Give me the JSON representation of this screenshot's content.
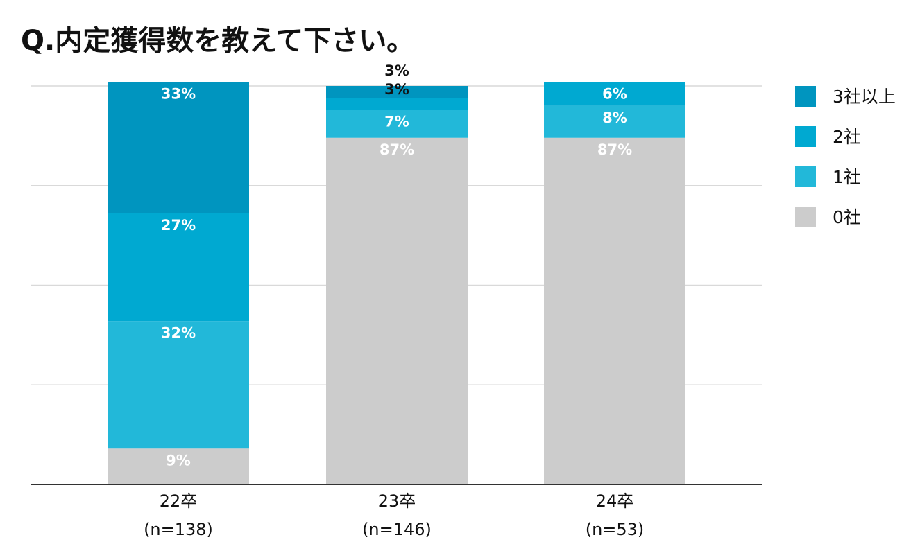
{
  "chart_data": {
    "type": "bar",
    "stacked": true,
    "title": "Q.内定獲得数を教えて下さい。",
    "categories": [
      {
        "label": "22卒",
        "sublabel": "(n=138)"
      },
      {
        "label": "23卒",
        "sublabel": "(n=146)"
      },
      {
        "label": "24卒",
        "sublabel": "(n=53)"
      }
    ],
    "series": [
      {
        "name": "0社",
        "color": "#cccccc",
        "values": [
          9,
          87,
          87
        ]
      },
      {
        "name": "1社",
        "color": "#22b8d9",
        "values": [
          32,
          7,
          8
        ]
      },
      {
        "name": "2社",
        "color": "#00a9d1",
        "values": [
          27,
          3,
          6
        ]
      },
      {
        "name": "3社以上",
        "color": "#0095bf",
        "values": [
          33,
          3,
          0
        ]
      }
    ],
    "value_labels": [
      [
        "9%",
        "32%",
        "27%",
        "33%"
      ],
      [
        "87%",
        "7%",
        "3%",
        "3%"
      ],
      [
        "87%",
        "8%",
        "6%",
        ""
      ]
    ],
    "ylim": [
      0,
      100
    ],
    "grid": true,
    "legend": "right",
    "legend_order": [
      "3社以上",
      "2社",
      "1社",
      "0社"
    ]
  }
}
